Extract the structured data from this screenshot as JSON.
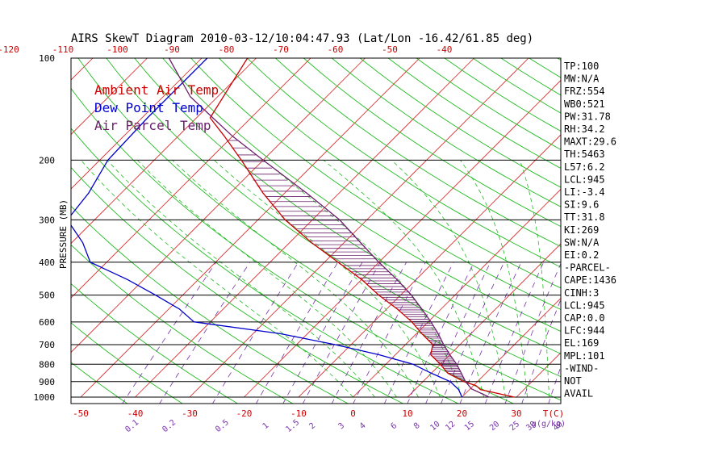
{
  "chart_data": {
    "type": "line",
    "title": "AIRS SkewT Diagram 2010-03-12/10:04:47.93 (Lat/Lon -16.42/61.85 deg)",
    "ylabel": "PRESSURE (MB)",
    "xlabel_bottom_unit": "T(C)",
    "mixing_ratio_unit": "g(g/kg)",
    "pressure_levels": [
      100,
      200,
      300,
      400,
      500,
      600,
      700,
      800,
      900,
      1000
    ],
    "top_temp_ticks": [
      -120,
      -110,
      -100,
      -90,
      -80,
      -70,
      -60,
      -50,
      -40
    ],
    "bottom_temp_ticks": [
      -50,
      -40,
      -30,
      -20,
      -10,
      0,
      10,
      20,
      30
    ],
    "mixing_ratio_ticks": [
      "0.1",
      "0.2",
      "0.5",
      "1",
      "1.5",
      "2",
      "3",
      "4",
      "6",
      "8",
      "10",
      "12",
      "15",
      "20",
      "25",
      "30",
      "40"
    ],
    "legend": [
      {
        "label": "Ambient Air Temp",
        "color": "#cc0000"
      },
      {
        "label": "Dew Point Temp",
        "color": "#0000cc"
      },
      {
        "label": "Air Parcel Temp",
        "color": "#6b1f6b"
      }
    ],
    "series": [
      {
        "name": "Ambient Air Temp",
        "color": "#cc0000",
        "points": [
          [
            100,
            -81.6
          ],
          [
            150,
            -77.5
          ],
          [
            170,
            -71.5
          ],
          [
            200,
            -64.0
          ],
          [
            250,
            -54.0
          ],
          [
            300,
            -45.0
          ],
          [
            350,
            -36.0
          ],
          [
            400,
            -27.5
          ],
          [
            450,
            -20.0
          ],
          [
            500,
            -14.0
          ],
          [
            550,
            -8.0
          ],
          [
            600,
            -3.0
          ],
          [
            650,
            1.0
          ],
          [
            700,
            5.0
          ],
          [
            750,
            6.5
          ],
          [
            800,
            10.0
          ],
          [
            850,
            13.0
          ],
          [
            900,
            17.5
          ],
          [
            925,
            20.5
          ],
          [
            950,
            22.0
          ],
          [
            1000,
            29.6
          ]
        ]
      },
      {
        "name": "Dew Point Temp",
        "color": "#0000cc",
        "points": [
          [
            100,
            -89
          ],
          [
            150,
            -89
          ],
          [
            200,
            -88.5
          ],
          [
            250,
            -86
          ],
          [
            300,
            -85
          ],
          [
            350,
            -78
          ],
          [
            400,
            -73
          ],
          [
            450,
            -63
          ],
          [
            500,
            -55
          ],
          [
            550,
            -48
          ],
          [
            600,
            -43
          ],
          [
            650,
            -25
          ],
          [
            700,
            -13
          ],
          [
            750,
            -3
          ],
          [
            800,
            5
          ],
          [
            850,
            10
          ],
          [
            900,
            15
          ],
          [
            950,
            18
          ],
          [
            1000,
            20
          ]
        ]
      },
      {
        "name": "Air Parcel Temp",
        "color": "#6b1f6b",
        "points": [
          [
            100,
            -96
          ],
          [
            130,
            -85
          ],
          [
            170,
            -70
          ],
          [
            200,
            -60
          ],
          [
            250,
            -46
          ],
          [
            300,
            -35
          ],
          [
            350,
            -27
          ],
          [
            400,
            -20
          ],
          [
            450,
            -13.5
          ],
          [
            500,
            -8
          ],
          [
            550,
            -3.5
          ],
          [
            600,
            0.5
          ],
          [
            650,
            4
          ],
          [
            700,
            7
          ],
          [
            750,
            10
          ],
          [
            800,
            13
          ],
          [
            850,
            15.5
          ],
          [
            900,
            17.8
          ],
          [
            945,
            20.2
          ],
          [
            1000,
            25
          ]
        ]
      }
    ],
    "indices": [
      "TP:100",
      "MW:N/A",
      "FRZ:554",
      "WB0:521",
      "PW:31.78",
      "RH:34.2",
      "MAXT:29.6",
      "TH:5463",
      "L57:6.2",
      "LCL:945",
      "LI:-3.4",
      "SI:9.6",
      "TT:31.8",
      "KI:269",
      "SW:N/A",
      "EI:0.2",
      "-PARCEL-",
      "CAPE:1436",
      "CINH:3",
      "LCL:945",
      "CAP:0.0",
      "LFC:944",
      "EL:169",
      "MPL:101",
      "-WIND-",
      "NOT",
      "AVAIL"
    ]
  }
}
